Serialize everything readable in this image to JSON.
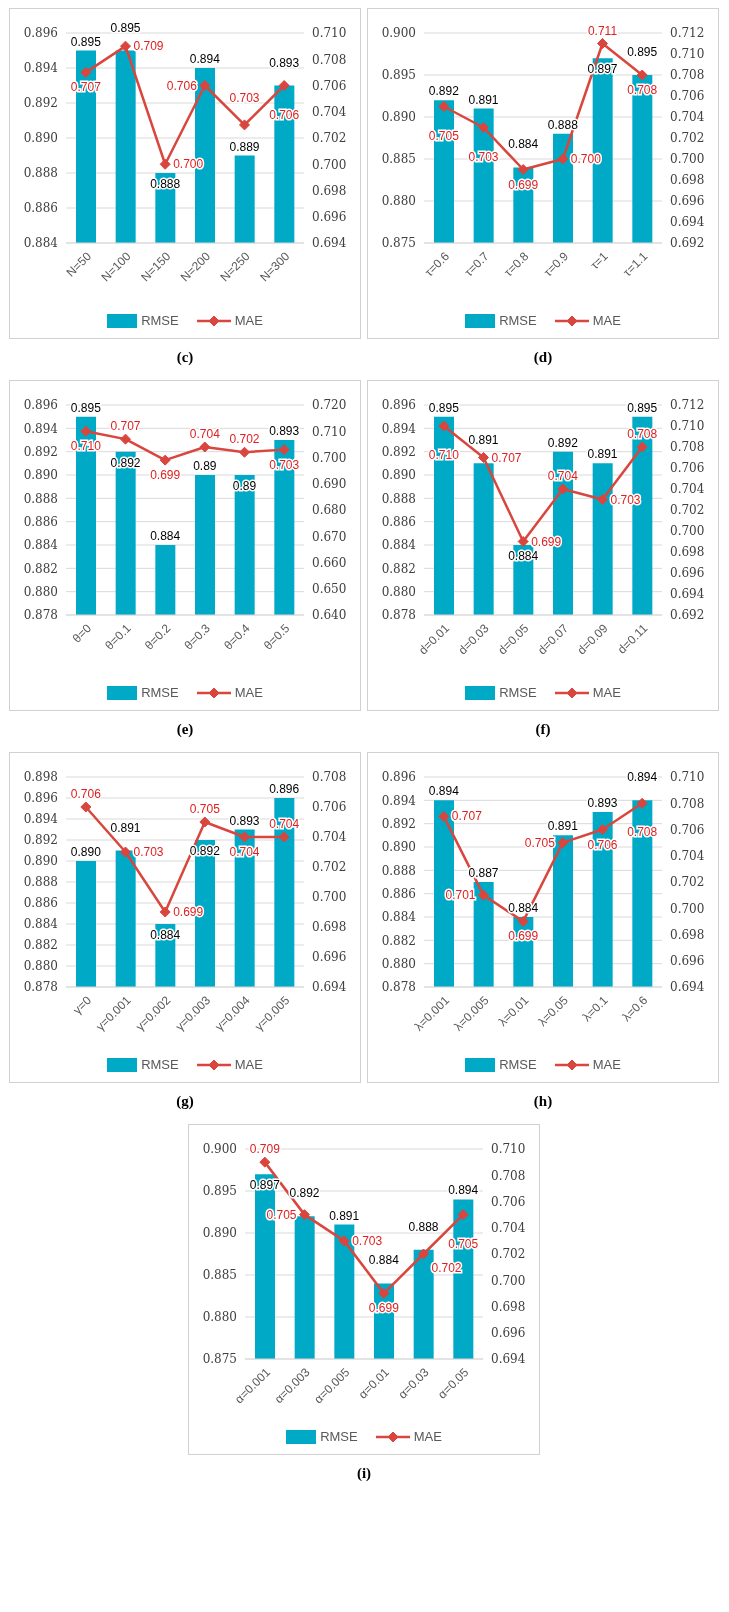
{
  "chart_data": [
    {
      "type": "bar",
      "title": "(c)",
      "categories": [
        "N=50",
        "N=100",
        "N=150",
        "N=200",
        "N=250",
        "N=300"
      ],
      "series": [
        {
          "name": "RMSE",
          "color": "#00a9c6",
          "values": [
            0.895,
            0.895,
            0.888,
            0.894,
            0.889,
            0.893
          ],
          "value_labels": [
            "0.895",
            "0.895",
            "0.888",
            "0.894",
            "0.889",
            "0.893"
          ]
        },
        {
          "name": "MAE",
          "type": "line",
          "axis": "y2",
          "color": "#d9463e",
          "values": [
            0.707,
            0.709,
            0.7,
            0.706,
            0.703,
            0.706
          ],
          "value_labels": [
            "0.707",
            "0.709",
            "0.700",
            "0.706",
            "0.703",
            "0.706"
          ]
        }
      ],
      "ylim": [
        0.884,
        0.896
      ],
      "yticks": [
        0.884,
        0.886,
        0.888,
        {
          "value": 0.89,
          "label": "0.890"
        },
        0.892,
        0.894,
        0.896
      ],
      "y2lim": [
        0.694,
        0.71
      ],
      "y2ticks": [
        0.694,
        0.696,
        0.698,
        {
          "value": 0.7,
          "label": "0.700"
        },
        0.702,
        0.704,
        0.706,
        0.708,
        {
          "value": 0.71,
          "label": "0.710"
        }
      ],
      "grid": "y",
      "legend": "bottom",
      "marker": "diamond"
    },
    {
      "type": "bar",
      "title": "(d)",
      "categories": [
        "τ=0.6",
        "τ=0.7",
        "τ=0.8",
        "τ=0.9",
        "τ=1",
        "τ=1.1"
      ],
      "series": [
        {
          "name": "RMSE",
          "color": "#00a9c6",
          "values": [
            0.892,
            0.891,
            0.884,
            0.888,
            0.897,
            0.895
          ],
          "value_labels": [
            "0.892",
            "0.891",
            "0.884",
            "0.888",
            "0.897",
            "0.895"
          ]
        },
        {
          "name": "MAE",
          "type": "line",
          "axis": "y2",
          "color": "#d9463e",
          "values": [
            0.705,
            0.703,
            0.699,
            0.7,
            0.711,
            0.708
          ],
          "value_labels": [
            "0.705",
            "0.703",
            "0.699",
            "0.700",
            "0.711",
            "0.708"
          ]
        }
      ],
      "ylim": [
        0.875,
        0.9
      ],
      "yticks": [
        0.875,
        {
          "value": 0.88,
          "label": "0.880"
        },
        0.885,
        {
          "value": 0.89,
          "label": "0.890"
        },
        0.895,
        {
          "value": 0.9,
          "label": "0.900"
        }
      ],
      "y2lim": [
        0.692,
        0.712
      ],
      "y2ticks": [
        0.692,
        0.694,
        0.696,
        0.698,
        {
          "value": 0.7,
          "label": "0.700"
        },
        0.702,
        0.704,
        0.706,
        0.708,
        {
          "value": 0.71,
          "label": "0.710"
        },
        0.712
      ],
      "grid": "y",
      "legend": "bottom",
      "marker": "diamond"
    },
    {
      "type": "bar",
      "title": "(e)",
      "categories": [
        "θ=0",
        "θ=0.1",
        "θ=0.2",
        "θ=0.3",
        "θ=0.4",
        "θ=0.5"
      ],
      "series": [
        {
          "name": "RMSE",
          "color": "#00a9c6",
          "values": [
            0.895,
            0.892,
            0.884,
            0.89,
            0.89,
            0.893
          ],
          "value_labels": [
            "0.895",
            "0.892",
            "0.884",
            "0.89",
            "0.89",
            "0.893"
          ]
        },
        {
          "name": "MAE",
          "type": "line",
          "axis": "y2",
          "color": "#d9463e",
          "values": [
            0.71,
            0.707,
            0.699,
            0.704,
            0.702,
            0.703
          ],
          "value_labels": [
            "0.710",
            "0.707",
            "0.699",
            "0.704",
            "0.702",
            "0.703"
          ]
        }
      ],
      "ylim": [
        0.878,
        0.896
      ],
      "yticks": [
        0.878,
        {
          "value": 0.88,
          "label": "0.880"
        },
        0.882,
        0.884,
        0.886,
        0.888,
        {
          "value": 0.89,
          "label": "0.890"
        },
        0.892,
        0.894,
        0.896
      ],
      "y2lim": [
        0.64,
        0.72
      ],
      "y2ticks": [
        {
          "value": 0.64,
          "label": "0.640"
        },
        {
          "value": 0.65,
          "label": "0.650"
        },
        {
          "value": 0.66,
          "label": "0.660"
        },
        {
          "value": 0.67,
          "label": "0.670"
        },
        {
          "value": 0.68,
          "label": "0.680"
        },
        {
          "value": 0.69,
          "label": "0.690"
        },
        {
          "value": 0.7,
          "label": "0.700"
        },
        {
          "value": 0.71,
          "label": "0.710"
        },
        {
          "value": 0.72,
          "label": "0.720"
        }
      ],
      "grid": "y",
      "legend": "bottom",
      "marker": "diamond"
    },
    {
      "type": "bar",
      "title": "(f)",
      "categories": [
        "d=0.01",
        "d=0.03",
        "d=0.05",
        "d=0.07",
        "d=0.09",
        "d=0.11"
      ],
      "series": [
        {
          "name": "RMSE",
          "color": "#00a9c6",
          "values": [
            0.895,
            0.891,
            0.884,
            0.892,
            0.891,
            0.895
          ],
          "value_labels": [
            "0.895",
            "0.891",
            "0.884",
            "0.892",
            "0.891",
            "0.895"
          ]
        },
        {
          "name": "MAE",
          "type": "line",
          "axis": "y2",
          "color": "#d9463e",
          "values": [
            0.71,
            0.707,
            0.699,
            0.704,
            0.703,
            0.708
          ],
          "value_labels": [
            "0.710",
            "0.707",
            "0.699",
            "0.704",
            "0.703",
            "0.708"
          ]
        }
      ],
      "ylim": [
        0.878,
        0.896
      ],
      "yticks": [
        0.878,
        {
          "value": 0.88,
          "label": "0.880"
        },
        0.882,
        0.884,
        0.886,
        0.888,
        {
          "value": 0.89,
          "label": "0.890"
        },
        0.892,
        0.894,
        0.896
      ],
      "y2lim": [
        0.692,
        0.712
      ],
      "y2ticks": [
        0.692,
        0.694,
        0.696,
        0.698,
        {
          "value": 0.7,
          "label": "0.700"
        },
        0.702,
        0.704,
        0.706,
        0.708,
        {
          "value": 0.71,
          "label": "0.710"
        },
        0.712
      ],
      "grid": "y",
      "legend": "bottom",
      "marker": "diamond"
    },
    {
      "type": "bar",
      "title": "(g)",
      "categories": [
        "γ=0",
        "γ=0.001",
        "γ=0.002",
        "γ=0.003",
        "γ=0.004",
        "γ=0.005"
      ],
      "series": [
        {
          "name": "RMSE",
          "color": "#00a9c6",
          "values": [
            0.89,
            0.891,
            0.884,
            0.892,
            0.893,
            0.896
          ],
          "value_labels": [
            "0.890",
            "0.891",
            "0.884",
            "0.892",
            "0.893",
            "0.896"
          ]
        },
        {
          "name": "MAE",
          "type": "line",
          "axis": "y2",
          "color": "#d9463e",
          "values": [
            0.706,
            0.703,
            0.699,
            0.705,
            0.704,
            0.704
          ],
          "value_labels": [
            "0.706",
            "0.703",
            "0.699",
            "0.705",
            "0.704",
            "0.704"
          ]
        }
      ],
      "ylim": [
        0.878,
        0.898
      ],
      "yticks": [
        0.878,
        {
          "value": 0.88,
          "label": "0.880"
        },
        0.882,
        0.884,
        0.886,
        0.888,
        {
          "value": 0.89,
          "label": "0.890"
        },
        0.892,
        0.894,
        0.896,
        0.898
      ],
      "y2lim": [
        0.694,
        0.708
      ],
      "y2ticks": [
        0.694,
        0.696,
        0.698,
        {
          "value": 0.7,
          "label": "0.700"
        },
        0.702,
        0.704,
        0.706,
        0.708
      ],
      "grid": "y",
      "legend": "bottom",
      "marker": "diamond"
    },
    {
      "type": "bar",
      "title": "(h)",
      "categories": [
        "λ=0.001",
        "λ=0.005",
        "λ=0.01",
        "λ=0.05",
        "λ=0.1",
        "λ=0.6"
      ],
      "series": [
        {
          "name": "RMSE",
          "color": "#00a9c6",
          "values": [
            0.894,
            0.887,
            0.884,
            0.891,
            0.893,
            0.894
          ],
          "value_labels": [
            "0.894",
            "0.887",
            "0.884",
            "0.891",
            "0.893",
            "0.894"
          ]
        },
        {
          "name": "MAE",
          "type": "line",
          "axis": "y2",
          "color": "#d9463e",
          "values": [
            0.707,
            0.701,
            0.699,
            0.705,
            0.706,
            0.708
          ],
          "value_labels": [
            "0.707",
            "0.701",
            "0.699",
            "0.705",
            "0.706",
            "0.708"
          ]
        }
      ],
      "ylim": [
        0.878,
        0.896
      ],
      "yticks": [
        0.878,
        {
          "value": 0.88,
          "label": "0.880"
        },
        0.882,
        0.884,
        0.886,
        0.888,
        {
          "value": 0.89,
          "label": "0.890"
        },
        0.892,
        0.894,
        0.896
      ],
      "y2lim": [
        0.694,
        0.71
      ],
      "y2ticks": [
        0.694,
        0.696,
        0.698,
        {
          "value": 0.7,
          "label": "0.700"
        },
        0.702,
        0.704,
        0.706,
        0.708,
        {
          "value": 0.71,
          "label": "0.710"
        }
      ],
      "grid": "y",
      "legend": "bottom",
      "marker": "diamond"
    },
    {
      "type": "bar",
      "title": "(i)",
      "categories": [
        "α=0.001",
        "α=0.003",
        "α=0.005",
        "α=0.01",
        "α=0.03",
        "α=0.05"
      ],
      "series": [
        {
          "name": "RMSE",
          "color": "#00a9c6",
          "values": [
            0.897,
            0.892,
            0.891,
            0.884,
            0.888,
            0.894
          ],
          "value_labels": [
            "0.897",
            "0.892",
            "0.891",
            "0.884",
            "0.888",
            "0.894"
          ]
        },
        {
          "name": "MAE",
          "type": "line",
          "axis": "y2",
          "color": "#d9463e",
          "values": [
            0.709,
            0.705,
            0.703,
            0.699,
            0.702,
            0.705
          ],
          "value_labels": [
            "0.709",
            "0.705",
            "0.703",
            "0.699",
            "0.702",
            "0.705"
          ]
        }
      ],
      "ylim": [
        0.875,
        0.9
      ],
      "yticks": [
        0.875,
        {
          "value": 0.88,
          "label": "0.880"
        },
        0.885,
        {
          "value": 0.89,
          "label": "0.890"
        },
        0.895,
        {
          "value": 0.9,
          "label": "0.900"
        }
      ],
      "y2lim": [
        0.694,
        0.71
      ],
      "y2ticks": [
        0.694,
        0.696,
        0.698,
        {
          "value": 0.7,
          "label": "0.700"
        },
        0.702,
        0.704,
        0.706,
        0.708,
        {
          "value": 0.71,
          "label": "0.710"
        }
      ],
      "grid": "y",
      "legend": "bottom",
      "marker": "diamond"
    }
  ]
}
